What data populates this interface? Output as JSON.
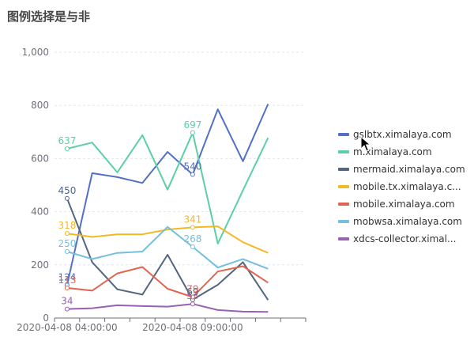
{
  "page": {
    "title": "图例选择是与非"
  },
  "chart_data": {
    "type": "line",
    "title": "图例选择是与非",
    "xlabel": "",
    "ylabel": "",
    "ylim": [
      0,
      1000
    ],
    "yticks": [
      0,
      200,
      400,
      600,
      800,
      1000
    ],
    "ytick_labels": [
      "0",
      "200",
      "400",
      "600",
      "800",
      "1,000"
    ],
    "x": [
      0,
      1,
      2,
      3,
      4,
      5,
      6,
      7,
      8,
      9
    ],
    "xtick_labels": [
      {
        "index": 0,
        "label": "2020-04-08 04:00:00"
      },
      {
        "index": 5,
        "label": "2020-04-08 09:00:00"
      }
    ],
    "grid": true,
    "legend_position": "right",
    "series": [
      {
        "name": "gslbtx.ximalaya.com",
        "display_name": "gslbtx.ximalaya.com",
        "color": "#5470c6",
        "values": [
          124,
          545,
          530,
          508,
          625,
          540,
          785,
          590,
          805,
          null
        ],
        "labels": [
          0,
          5
        ]
      },
      {
        "name": "m.ximalaya.com",
        "display_name": "m.ximalaya.com",
        "color": "#5ad0a3",
        "values": [
          637,
          660,
          548,
          688,
          483,
          697,
          280,
          480,
          678,
          null
        ],
        "labels": [
          0,
          5
        ]
      },
      {
        "name": "mermaid.ximalaya.com",
        "display_name": "mermaid.ximalaya.com",
        "color": "#53657f",
        "values": [
          450,
          210,
          108,
          88,
          238,
          69,
          125,
          210,
          68,
          null
        ],
        "labels": [
          0,
          5
        ]
      },
      {
        "name": "mobile.tx.ximalaya.com",
        "display_name": "mobile.tx.ximalaya.c...",
        "color": "#f2b925",
        "values": [
          318,
          305,
          315,
          315,
          333,
          341,
          345,
          285,
          245,
          null
        ],
        "labels": [
          0,
          5
        ]
      },
      {
        "name": "mobile.ximalaya.com",
        "display_name": "mobile.ximalaya.com",
        "color": "#e0654f",
        "values": [
          113,
          103,
          168,
          192,
          110,
          79,
          175,
          195,
          133,
          null
        ],
        "labels": [
          0,
          5
        ]
      },
      {
        "name": "mobwsa.ximalaya.com",
        "display_name": "mobwsa.ximalaya.com",
        "color": "#73c0de",
        "values": [
          250,
          222,
          245,
          250,
          343,
          268,
          190,
          222,
          185,
          null
        ],
        "labels": [
          0,
          5
        ]
      },
      {
        "name": "xdcs-collector.ximalaya.com",
        "display_name": "xdcs-collector.ximal...",
        "color": "#9a60b4",
        "values": [
          34,
          37,
          48,
          45,
          43,
          53,
          30,
          24,
          23,
          null
        ],
        "labels": [
          0,
          5
        ]
      }
    ]
  }
}
